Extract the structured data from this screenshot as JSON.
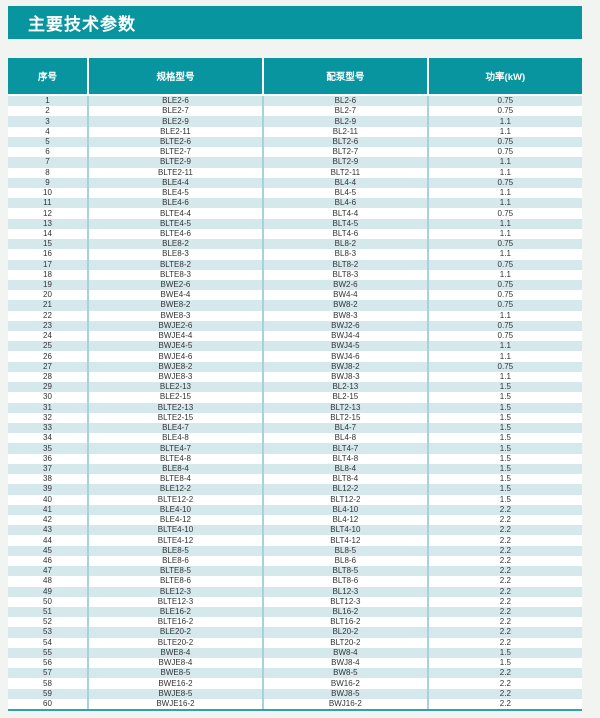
{
  "header": {
    "title": "主要技术参数"
  },
  "table": {
    "columns": [
      {
        "label": "序号"
      },
      {
        "label": "规格型号"
      },
      {
        "label": "配泵型号"
      },
      {
        "label": "功率(kW)"
      }
    ],
    "rows": [
      [
        "1",
        "BLE2-6",
        "BL2-6",
        "0.75"
      ],
      [
        "2",
        "BLE2-7",
        "BL2-7",
        "0.75"
      ],
      [
        "3",
        "BLE2-9",
        "BL2-9",
        "1.1"
      ],
      [
        "4",
        "BLE2-11",
        "BL2-11",
        "1.1"
      ],
      [
        "5",
        "BLTE2-6",
        "BLT2-6",
        "0.75"
      ],
      [
        "6",
        "BLTE2-7",
        "BLT2-7",
        "0.75"
      ],
      [
        "7",
        "BLTE2-9",
        "BLT2-9",
        "1.1"
      ],
      [
        "8",
        "BLTE2-11",
        "BLT2-11",
        "1.1"
      ],
      [
        "9",
        "BLE4-4",
        "BL4-4",
        "0.75"
      ],
      [
        "10",
        "BLE4-5",
        "BL4-5",
        "1.1"
      ],
      [
        "11",
        "BLE4-6",
        "BL4-6",
        "1.1"
      ],
      [
        "12",
        "BLTE4-4",
        "BLT4-4",
        "0.75"
      ],
      [
        "13",
        "BLTE4-5",
        "BLT4-5",
        "1.1"
      ],
      [
        "14",
        "BLTE4-6",
        "BLT4-6",
        "1.1"
      ],
      [
        "15",
        "BLE8-2",
        "BL8-2",
        "0.75"
      ],
      [
        "16",
        "BLE8-3",
        "BL8-3",
        "1.1"
      ],
      [
        "17",
        "BLTE8-2",
        "BLT8-2",
        "0.75"
      ],
      [
        "18",
        "BLTE8-3",
        "BLT8-3",
        "1.1"
      ],
      [
        "19",
        "BWE2-6",
        "BW2-6",
        "0.75"
      ],
      [
        "20",
        "BWE4-4",
        "BW4-4",
        "0.75"
      ],
      [
        "21",
        "BWE8-2",
        "BW8-2",
        "0.75"
      ],
      [
        "22",
        "BWE8-3",
        "BW8-3",
        "1.1"
      ],
      [
        "23",
        "BWJE2-6",
        "BWJ2-6",
        "0.75"
      ],
      [
        "24",
        "BWJE4-4",
        "BWJ4-4",
        "0.75"
      ],
      [
        "25",
        "BWJE4-5",
        "BWJ4-5",
        "1.1"
      ],
      [
        "26",
        "BWJE4-6",
        "BWJ4-6",
        "1.1"
      ],
      [
        "27",
        "BWJE8-2",
        "BWJ8-2",
        "0.75"
      ],
      [
        "28",
        "BWJE8-3",
        "BWJ8-3",
        "1.1"
      ],
      [
        "29",
        "BLE2-13",
        "BL2-13",
        "1.5"
      ],
      [
        "30",
        "BLE2-15",
        "BL2-15",
        "1.5"
      ],
      [
        "31",
        "BLTE2-13",
        "BLT2-13",
        "1.5"
      ],
      [
        "32",
        "BLTE2-15",
        "BLT2-15",
        "1.5"
      ],
      [
        "33",
        "BLE4-7",
        "BL4-7",
        "1.5"
      ],
      [
        "34",
        "BLE4-8",
        "BL4-8",
        "1.5"
      ],
      [
        "35",
        "BLTE4-7",
        "BLT4-7",
        "1.5"
      ],
      [
        "36",
        "BLTE4-8",
        "BLT4-8",
        "1.5"
      ],
      [
        "37",
        "BLE8-4",
        "BL8-4",
        "1.5"
      ],
      [
        "38",
        "BLTE8-4",
        "BLT8-4",
        "1.5"
      ],
      [
        "39",
        "BLE12-2",
        "BL12-2",
        "1.5"
      ],
      [
        "40",
        "BLTE12-2",
        "BLT12-2",
        "1.5"
      ],
      [
        "41",
        "BLE4-10",
        "BL4-10",
        "2.2"
      ],
      [
        "42",
        "BLE4-12",
        "BL4-12",
        "2.2"
      ],
      [
        "43",
        "BLTE4-10",
        "BLT4-10",
        "2.2"
      ],
      [
        "44",
        "BLTE4-12",
        "BLT4-12",
        "2.2"
      ],
      [
        "45",
        "BLE8-5",
        "BL8-5",
        "2.2"
      ],
      [
        "46",
        "BLE8-6",
        "BL8-6",
        "2.2"
      ],
      [
        "47",
        "BLTE8-5",
        "BLT8-5",
        "2.2"
      ],
      [
        "48",
        "BLTE8-6",
        "BLT8-6",
        "2.2"
      ],
      [
        "49",
        "BLE12-3",
        "BL12-3",
        "2.2"
      ],
      [
        "50",
        "BLTE12-3",
        "BLT12-3",
        "2.2"
      ],
      [
        "51",
        "BLE16-2",
        "BL16-2",
        "2.2"
      ],
      [
        "52",
        "BLTE16-2",
        "BLT16-2",
        "2.2"
      ],
      [
        "53",
        "BLE20-2",
        "BL20-2",
        "2.2"
      ],
      [
        "54",
        "BLTE20-2",
        "BLT20-2",
        "2.2"
      ],
      [
        "55",
        "BWE8-4",
        "BW8-4",
        "1.5"
      ],
      [
        "56",
        "BWJE8-4",
        "BWJ8-4",
        "1.5"
      ],
      [
        "57",
        "BWE8-5",
        "BW8-5",
        "2.2"
      ],
      [
        "58",
        "BWE16-2",
        "BW16-2",
        "2.2"
      ],
      [
        "59",
        "BWJE8-5",
        "BWJ8-5",
        "2.2"
      ],
      [
        "60",
        "BWJE16-2",
        "BWJ16-2",
        "2.2"
      ]
    ]
  },
  "colors": {
    "accent_teal": "#0995a0",
    "row_stripe": "#d5e9ed",
    "grid_line": "#a5d3da",
    "page_background": "#f2f4f1"
  }
}
